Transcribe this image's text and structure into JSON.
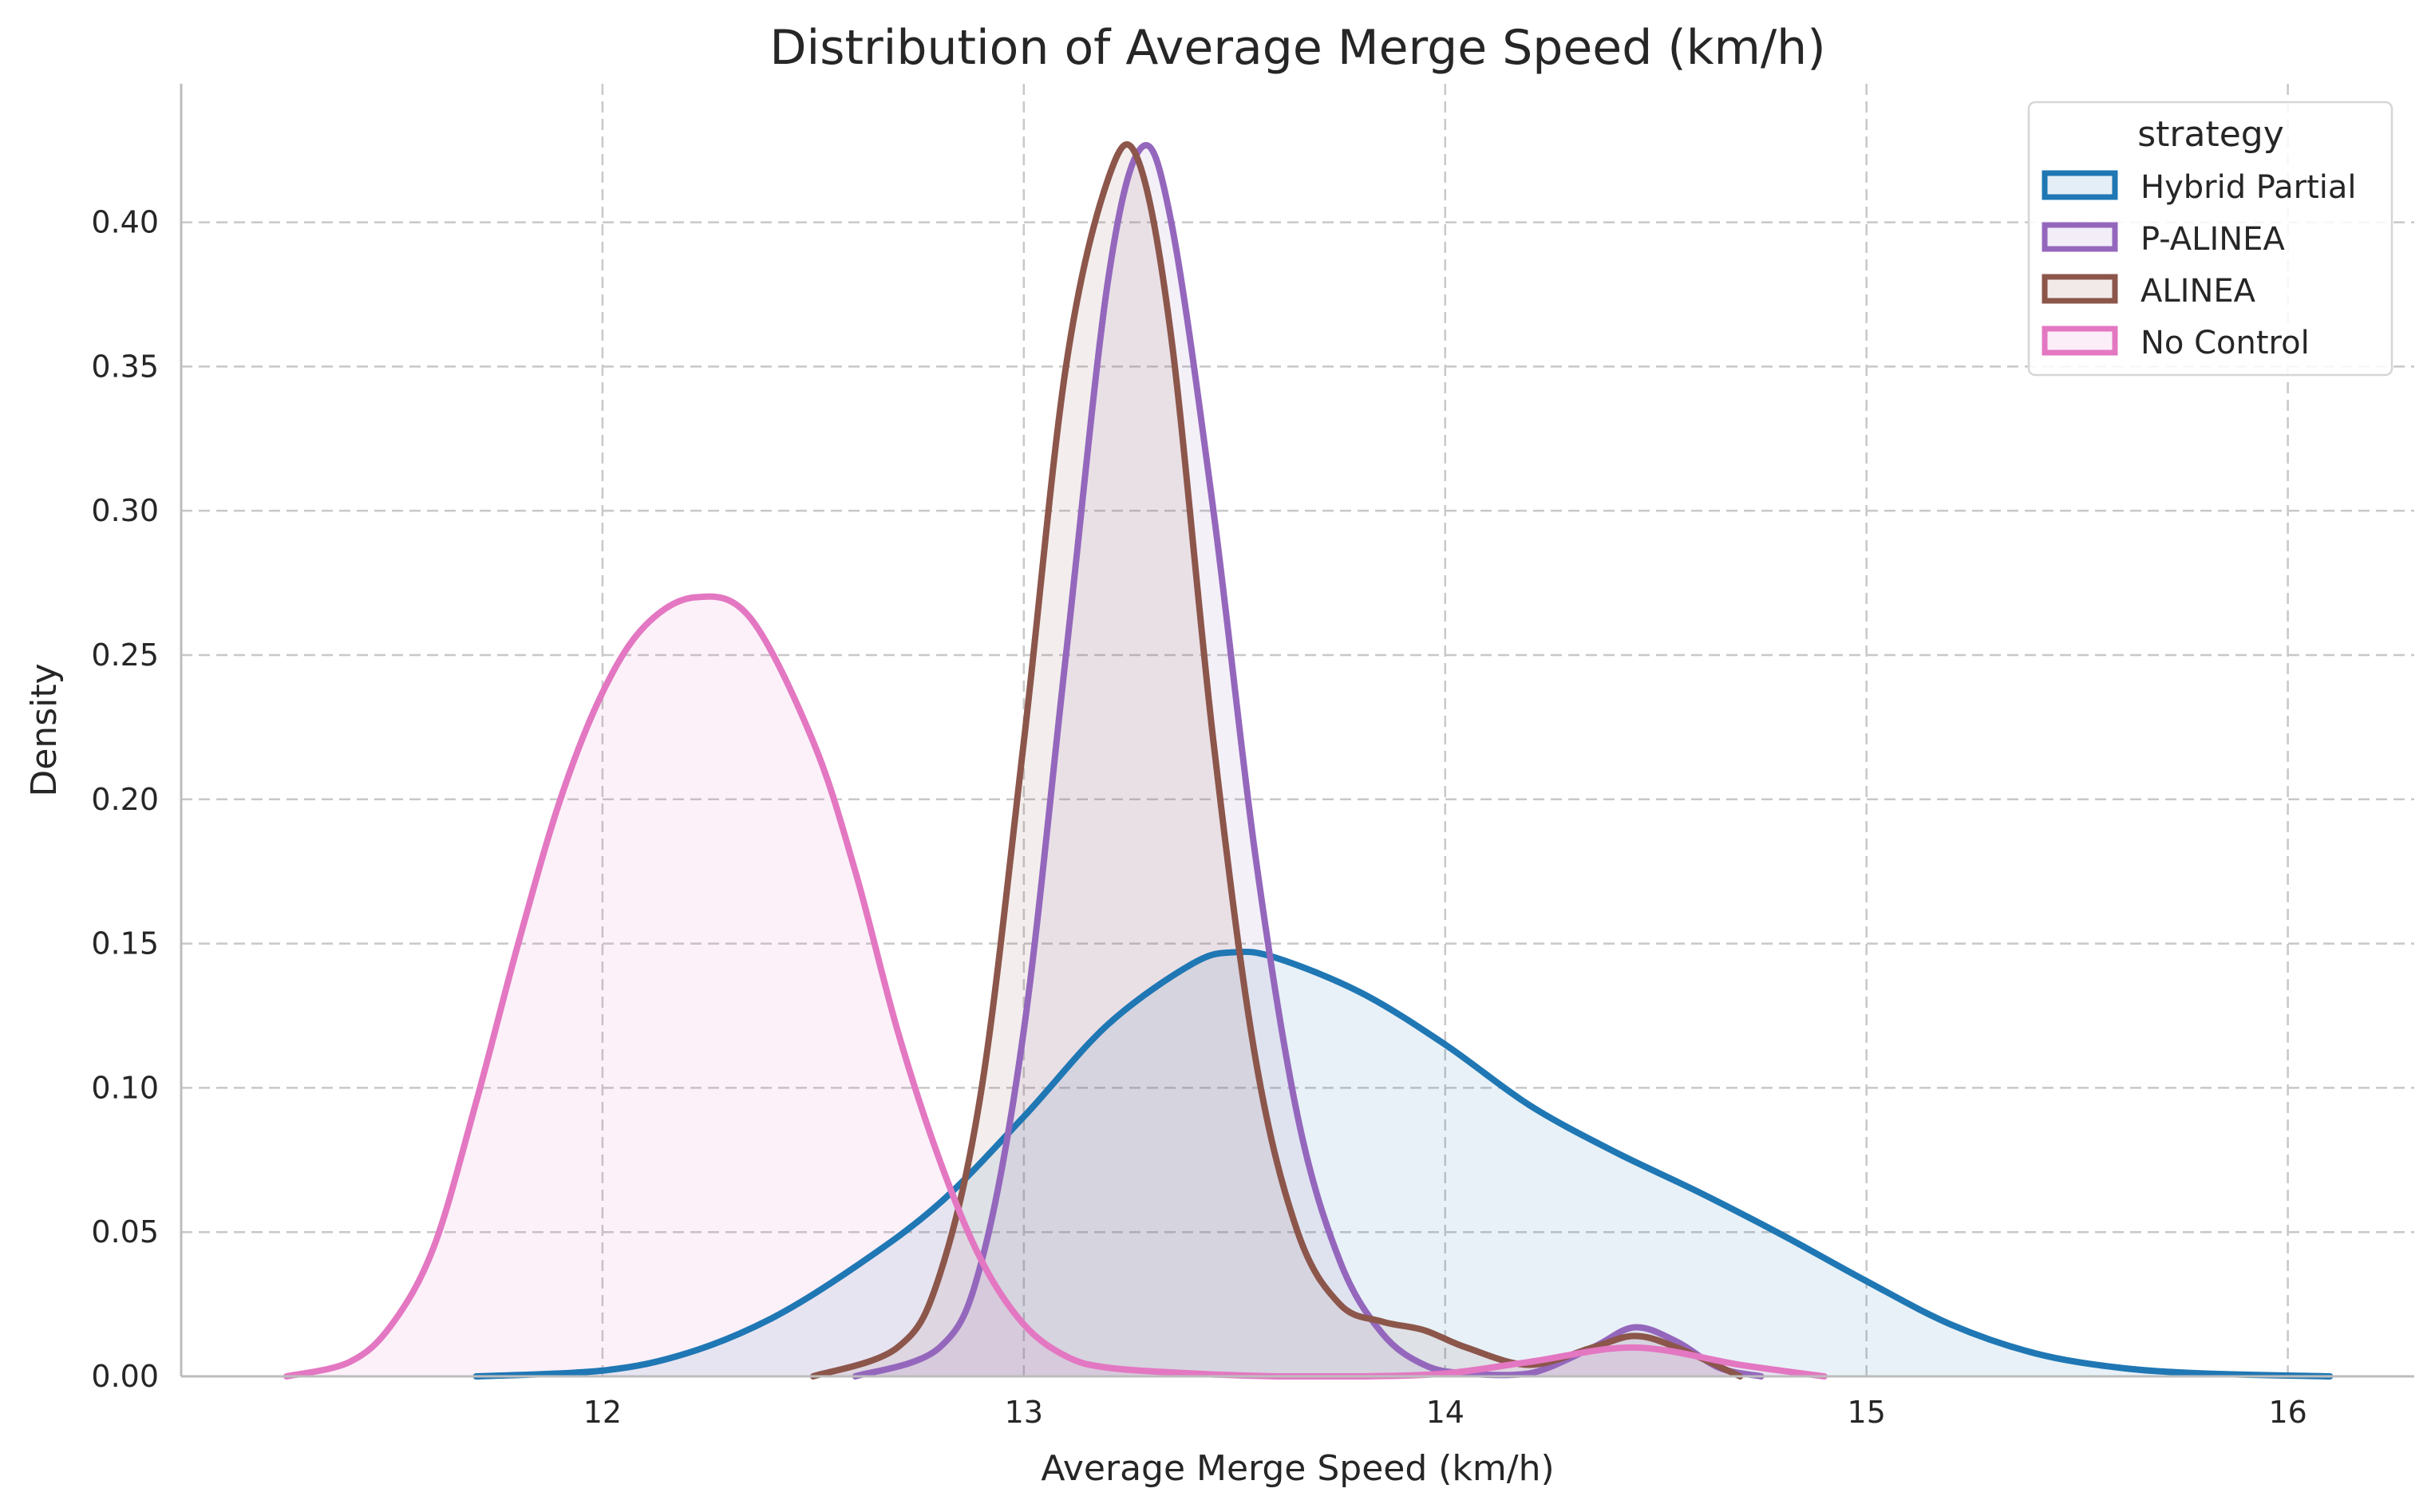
{
  "chart_data": {
    "type": "area",
    "title": "Distribution of Average Merge Speed (km/h)",
    "xlabel": "Average Merge Speed (km/h)",
    "ylabel": "Density",
    "xlim": [
      11.0,
      16.3
    ],
    "ylim": [
      0,
      0.448
    ],
    "x_ticks": [
      12,
      13,
      14,
      15,
      16
    ],
    "y_ticks": [
      0.0,
      0.05,
      0.1,
      0.15,
      0.2,
      0.25,
      0.3,
      0.35,
      0.4
    ],
    "x_tick_labels": [
      "12",
      "13",
      "14",
      "15",
      "16"
    ],
    "y_tick_labels": [
      "0.00",
      "0.05",
      "0.10",
      "0.15",
      "0.20",
      "0.25",
      "0.30",
      "0.35",
      "0.40"
    ],
    "grid": true,
    "legend": {
      "title": "strategy",
      "position": "top-right"
    },
    "series": [
      {
        "name": "Hybrid Partial",
        "color": "#1f77b4",
        "x": [
          11.7,
          12.0,
          12.2,
          12.4,
          12.6,
          12.8,
          13.0,
          13.2,
          13.4,
          13.5,
          13.6,
          13.8,
          14.0,
          14.2,
          14.4,
          14.6,
          14.8,
          15.0,
          15.2,
          15.4,
          15.6,
          15.8,
          16.1
        ],
        "y": [
          0.0,
          0.002,
          0.008,
          0.02,
          0.038,
          0.06,
          0.09,
          0.122,
          0.143,
          0.147,
          0.145,
          0.133,
          0.115,
          0.094,
          0.078,
          0.064,
          0.049,
          0.033,
          0.018,
          0.008,
          0.003,
          0.001,
          0.0
        ]
      },
      {
        "name": "P-ALINEA",
        "color": "#9467bd",
        "x": [
          12.6,
          12.8,
          12.9,
          13.0,
          13.1,
          13.2,
          13.28,
          13.35,
          13.45,
          13.55,
          13.65,
          13.75,
          13.85,
          13.95,
          14.05,
          14.2,
          14.35,
          14.45,
          14.55,
          14.65,
          14.75
        ],
        "y": [
          0.0,
          0.01,
          0.04,
          0.12,
          0.25,
          0.38,
          0.426,
          0.4,
          0.3,
          0.18,
          0.09,
          0.04,
          0.015,
          0.004,
          0.001,
          0.001,
          0.01,
          0.017,
          0.012,
          0.003,
          0.0
        ]
      },
      {
        "name": "ALINEA",
        "color": "#8c564b",
        "x": [
          12.5,
          12.7,
          12.8,
          12.9,
          13.0,
          13.1,
          13.2,
          13.27,
          13.35,
          13.45,
          13.55,
          13.65,
          13.75,
          13.85,
          13.95,
          14.05,
          14.2,
          14.35,
          14.45,
          14.55,
          14.7
        ],
        "y": [
          0.0,
          0.01,
          0.035,
          0.1,
          0.22,
          0.35,
          0.415,
          0.422,
          0.36,
          0.22,
          0.11,
          0.05,
          0.025,
          0.019,
          0.016,
          0.01,
          0.004,
          0.01,
          0.014,
          0.01,
          0.0
        ]
      },
      {
        "name": "No Control",
        "color": "#e377c2",
        "x": [
          11.25,
          11.4,
          11.5,
          11.6,
          11.7,
          11.8,
          11.9,
          12.0,
          12.1,
          12.22,
          12.35,
          12.5,
          12.6,
          12.7,
          12.8,
          12.9,
          13.0,
          13.1,
          13.2,
          13.4,
          13.6,
          13.8,
          14.0,
          14.2,
          14.45,
          14.7,
          14.9
        ],
        "y": [
          0.0,
          0.005,
          0.018,
          0.045,
          0.095,
          0.15,
          0.2,
          0.237,
          0.26,
          0.27,
          0.263,
          0.22,
          0.175,
          0.12,
          0.075,
          0.04,
          0.018,
          0.007,
          0.003,
          0.001,
          0.0,
          0.0,
          0.001,
          0.005,
          0.01,
          0.004,
          0.0
        ]
      }
    ]
  }
}
